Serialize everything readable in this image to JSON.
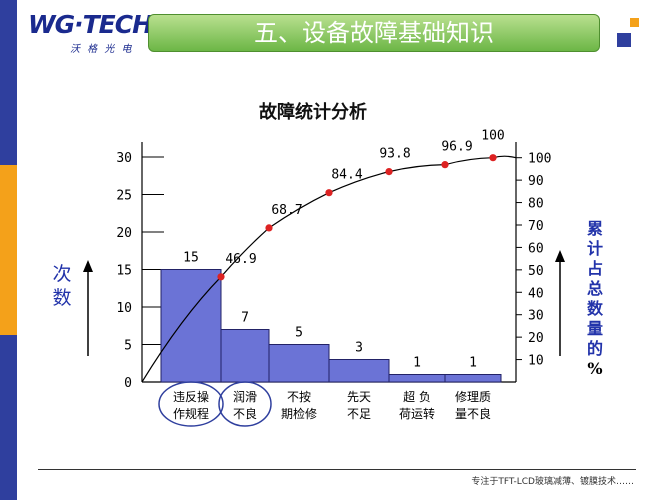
{
  "header": {
    "logo_main": "WG·TECH",
    "logo_sub": "沃 格 光 电",
    "title": "五、设备故障基础知识"
  },
  "footer": {
    "text": "专注于TFT-LCD玻璃减薄、镀膜技术……"
  },
  "colors": {
    "bar_fill": "#6b73d6",
    "bar_stroke": "#222266",
    "point": "#dd2222",
    "accent_blue": "#2f3f9e",
    "banner_green": "#6cb646",
    "side_orange": "#f4a11a"
  },
  "chart_data": {
    "type": "bar",
    "title": "故障统计分析",
    "ylabel": "次数",
    "y2label": "累计占总数量的%",
    "categories": [
      "违反操作规程",
      "润滑不良",
      "不按期检修",
      "先天不足",
      "超负荷运转",
      "修理质量不良"
    ],
    "category_lines": [
      [
        "违反操",
        "作规程"
      ],
      [
        "润滑",
        "不良"
      ],
      [
        "不按",
        "期检修"
      ],
      [
        "先天",
        "不足"
      ],
      [
        "超 负",
        "荷运转"
      ],
      [
        "修理质",
        "量不良"
      ]
    ],
    "values": [
      15,
      7,
      5,
      3,
      1,
      1
    ],
    "cumulative_percent": [
      46.9,
      68.7,
      84.4,
      93.8,
      96.9,
      100
    ],
    "cumulative_labels": [
      "46.9",
      "68.7",
      "84.4",
      "93.8",
      "96.9",
      "100"
    ],
    "value_labels": [
      "15",
      "7",
      "5",
      "3",
      "1",
      "1"
    ],
    "ylim": [
      0,
      32
    ],
    "yticks": [
      0,
      5,
      10,
      15,
      20,
      25,
      30
    ],
    "ytick_labels": [
      "0",
      "5",
      "10",
      "15",
      "20",
      "25",
      "30"
    ],
    "y2lim": [
      0,
      107
    ],
    "y2ticks": [
      10,
      20,
      30,
      40,
      50,
      60,
      70,
      80,
      90,
      100
    ],
    "y2tick_labels": [
      "10",
      "20",
      "30",
      "40",
      "50",
      "60",
      "70",
      "80",
      "90",
      "100"
    ],
    "circled_categories": [
      0,
      1
    ]
  }
}
